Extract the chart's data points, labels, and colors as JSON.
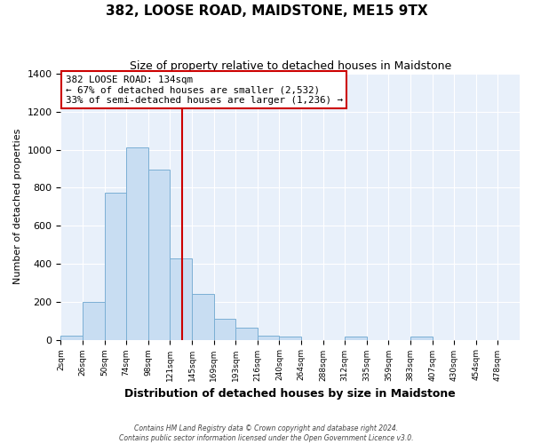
{
  "title": "382, LOOSE ROAD, MAIDSTONE, ME15 9TX",
  "subtitle": "Size of property relative to detached houses in Maidstone",
  "xlabel": "Distribution of detached houses by size in Maidstone",
  "ylabel": "Number of detached properties",
  "tick_labels": [
    "2sqm",
    "26sqm",
    "50sqm",
    "74sqm",
    "98sqm",
    "121sqm",
    "145sqm",
    "169sqm",
    "193sqm",
    "216sqm",
    "240sqm",
    "264sqm",
    "288sqm",
    "312sqm",
    "335sqm",
    "359sqm",
    "383sqm",
    "407sqm",
    "430sqm",
    "454sqm",
    "478sqm"
  ],
  "bar_values": [
    20,
    200,
    775,
    1010,
    895,
    430,
    240,
    110,
    65,
    20,
    15,
    0,
    0,
    15,
    0,
    0,
    18,
    0,
    0,
    0
  ],
  "bar_color": "#c8ddf2",
  "bar_edge_color": "#7bafd4",
  "fig_bg_color": "#ffffff",
  "plot_bg_color": "#e8f0fa",
  "grid_color": "#ffffff",
  "vline_color": "#cc0000",
  "vline_x_idx": 5.54,
  "ylim": [
    0,
    1400
  ],
  "yticks": [
    0,
    200,
    400,
    600,
    800,
    1000,
    1200,
    1400
  ],
  "annotation_title": "382 LOOSE ROAD: 134sqm",
  "annotation_line1": "← 67% of detached houses are smaller (2,532)",
  "annotation_line2": "33% of semi-detached houses are larger (1,236) →",
  "footer1": "Contains HM Land Registry data © Crown copyright and database right 2024.",
  "footer2": "Contains public sector information licensed under the Open Government Licence v3.0."
}
